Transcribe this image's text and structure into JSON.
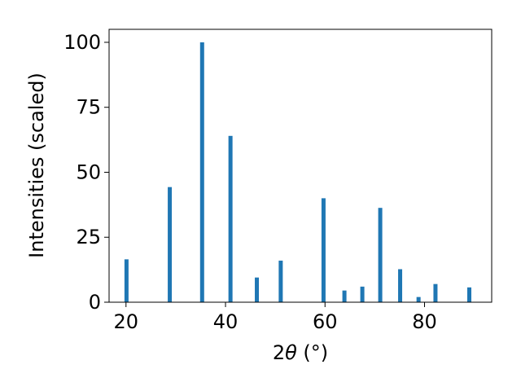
{
  "chart_data": {
    "type": "bar",
    "x": [
      20.1,
      28.8,
      35.3,
      41.0,
      46.3,
      51.1,
      59.7,
      63.9,
      67.5,
      71.1,
      75.1,
      78.8,
      82.2,
      89.0
    ],
    "values": [
      16.5,
      44.3,
      100.0,
      64.0,
      9.5,
      16.0,
      40.0,
      4.5,
      6.0,
      36.3,
      12.7,
      2.0,
      7.0,
      5.7
    ],
    "xlabel": "2θ (°)",
    "ylabel": "Intensities (scaled)",
    "xlim": [
      16.6,
      93.5
    ],
    "ylim": [
      0,
      105
    ],
    "xticks": [
      20,
      40,
      60,
      80
    ],
    "yticks": [
      0,
      25,
      50,
      75,
      100
    ],
    "grid": false,
    "bar_color": "#1f77b4"
  },
  "axes": {
    "x_label_main": "2",
    "x_label_theta": "θ",
    "x_label_unit": " (°)",
    "y_label": "Intensities (scaled)"
  }
}
